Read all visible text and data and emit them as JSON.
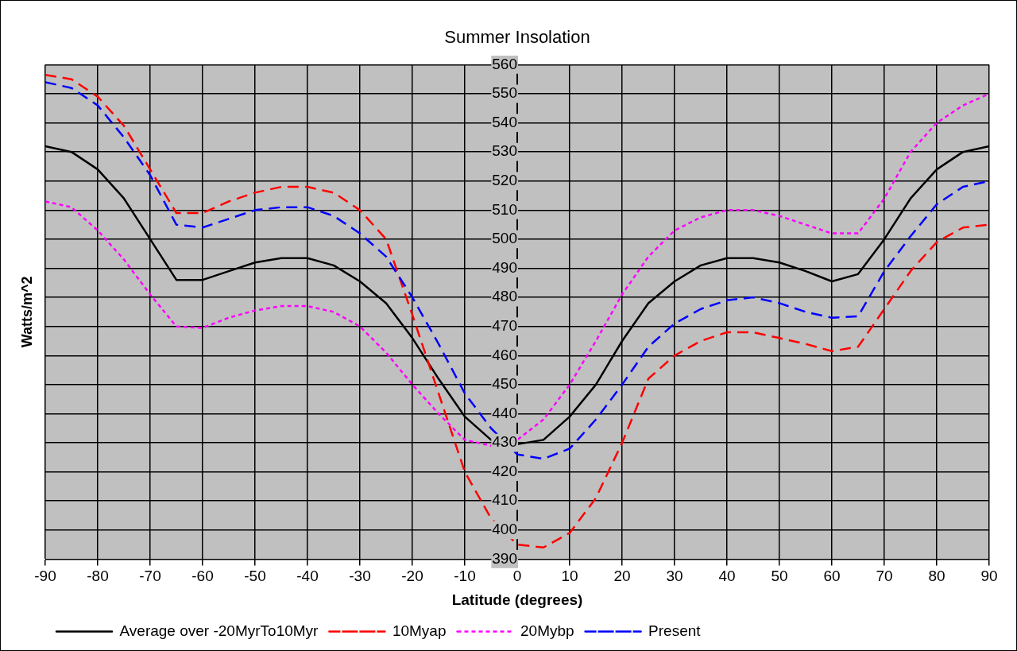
{
  "chart_data": {
    "type": "line",
    "title": "Summer Insolation",
    "xlabel": "Latitude (degrees)",
    "ylabel": "Watts/m^2",
    "x": [
      -90,
      -85,
      -80,
      -75,
      -70,
      -65,
      -60,
      -55,
      -50,
      -45,
      -40,
      -35,
      -30,
      -25,
      -20,
      -15,
      -10,
      -5,
      0,
      5,
      10,
      15,
      20,
      25,
      30,
      35,
      40,
      45,
      50,
      55,
      60,
      65,
      70,
      75,
      80,
      85,
      90
    ],
    "series": [
      {
        "name": "Average over -20MyrTo10Myr",
        "color": "#000000",
        "line_style": "solid",
        "values": [
          532,
          530,
          524,
          514,
          500,
          486,
          486,
          489,
          492,
          493.5,
          493.5,
          491,
          485.5,
          478,
          466,
          452,
          439,
          431,
          429.5,
          431,
          439,
          450,
          465,
          478,
          485.5,
          491,
          493.5,
          493.5,
          492,
          489,
          485.5,
          488,
          500,
          514,
          524,
          530,
          532
        ]
      },
      {
        "name": "10Myap",
        "color": "#ff0000",
        "line_style": "dashed",
        "values": [
          556.5,
          555,
          549,
          539,
          524,
          509,
          509,
          513,
          516,
          518,
          518,
          516,
          510,
          500,
          474,
          447,
          420,
          404,
          395,
          394,
          399,
          411,
          430,
          452,
          460,
          465,
          468,
          468,
          466,
          464,
          461.5,
          463,
          476,
          489,
          499,
          504,
          505
        ]
      },
      {
        "name": "20Mybp",
        "color": "#ff00ff",
        "line_style": "dotted",
        "values": [
          513,
          511,
          503,
          493,
          481,
          470,
          469.5,
          473,
          475.5,
          477,
          477,
          475,
          470,
          461,
          450,
          440,
          431,
          429,
          431,
          438,
          450,
          465,
          481,
          494,
          503,
          507.5,
          510,
          510,
          508,
          505,
          502,
          502,
          514,
          530,
          540,
          546,
          550
        ]
      },
      {
        "name": "Present",
        "color": "#0000ff",
        "line_style": "dashed",
        "values": [
          554,
          552,
          546,
          535,
          522,
          505,
          504,
          507,
          510,
          511,
          511,
          508,
          502,
          494,
          480,
          464,
          447,
          435,
          426,
          424.5,
          428,
          438,
          450,
          463,
          471,
          476,
          479,
          480,
          478,
          475,
          473,
          473.5,
          489,
          501,
          512,
          518,
          520
        ]
      }
    ],
    "xlim": [
      -90,
      90
    ],
    "xticks": [
      -90,
      -80,
      -70,
      -60,
      -50,
      -40,
      -30,
      -20,
      -10,
      0,
      10,
      20,
      30,
      40,
      50,
      60,
      70,
      80,
      90
    ],
    "ylim": [
      390,
      560
    ],
    "yticks": [
      390,
      400,
      410,
      420,
      430,
      440,
      450,
      460,
      470,
      480,
      490,
      500,
      510,
      520,
      530,
      540,
      550,
      560
    ],
    "grid": true,
    "legend": "bottom",
    "marker": "none"
  }
}
